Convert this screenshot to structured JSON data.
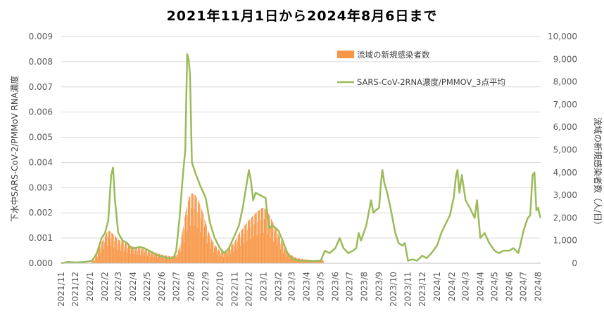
{
  "chart_data": {
    "type": "bar+line",
    "title": "2021年11月1日から2024年8月6日まで",
    "ylabel_left": "下水中SARS-CoV-2/PMMoV RNA濃度",
    "ylabel_right": "流域の新規感染者数（人/日）",
    "left_axis": {
      "min": 0,
      "max": 0.009,
      "ticks": [
        "0.000",
        "0.001",
        "0.002",
        "0.003",
        "0.004",
        "0.005",
        "0.006",
        "0.007",
        "0.008",
        "0.009"
      ]
    },
    "right_axis": {
      "min": 0,
      "max": 10000,
      "ticks": [
        "0",
        "1,000",
        "2,000",
        "3,000",
        "4,000",
        "5,000",
        "6,000",
        "7,000",
        "8,000",
        "9,000",
        "10,000"
      ]
    },
    "x_axis": {
      "start": "2021-11-01",
      "end": "2024-08-06",
      "ticks": [
        "2021/11",
        "2021/12",
        "2022/1",
        "2022/2",
        "2022/3",
        "2022/4",
        "2022/5",
        "2022/6",
        "2022/7",
        "2022/8",
        "2022/9",
        "2022/10",
        "2022/11",
        "2022/12",
        "2023/1",
        "2023/2",
        "2023/3",
        "2023/4",
        "2023/5",
        "2023/6",
        "2023/7",
        "2023/8",
        "2023/9",
        "2023/10",
        "2023/11",
        "2023/12",
        "2024/1",
        "2024/2",
        "2024/3",
        "2024/4",
        "2024/5",
        "2024/6",
        "2024/7",
        "2024/8"
      ]
    },
    "grid": "horizontal",
    "legend_position": "top-right",
    "series": [
      {
        "name": "流域の新規感染者数",
        "type": "bar",
        "axis": "right",
        "color": "#f79646",
        "x_end": "2023-05-07",
        "points": [
          [
            "2021-11-01",
            0
          ],
          [
            "2021-12-15",
            0
          ],
          [
            "2022-01-01",
            20
          ],
          [
            "2022-01-10",
            150
          ],
          [
            "2022-01-20",
            700
          ],
          [
            "2022-02-01",
            1200
          ],
          [
            "2022-02-07",
            1450
          ],
          [
            "2022-02-12",
            1400
          ],
          [
            "2022-02-20",
            1250
          ],
          [
            "2022-03-01",
            1050
          ],
          [
            "2022-03-15",
            900
          ],
          [
            "2022-03-25",
            800
          ],
          [
            "2022-04-05",
            700
          ],
          [
            "2022-04-20",
            650
          ],
          [
            "2022-05-05",
            550
          ],
          [
            "2022-05-20",
            450
          ],
          [
            "2022-06-01",
            380
          ],
          [
            "2022-06-15",
            320
          ],
          [
            "2022-06-25",
            300
          ],
          [
            "2022-07-01",
            350
          ],
          [
            "2022-07-08",
            700
          ],
          [
            "2022-07-15",
            1500
          ],
          [
            "2022-07-22",
            2400
          ],
          [
            "2022-07-28",
            2900
          ],
          [
            "2022-08-03",
            3100
          ],
          [
            "2022-08-10",
            3000
          ],
          [
            "2022-08-18",
            2700
          ],
          [
            "2022-08-25",
            2300
          ],
          [
            "2022-09-01",
            1800
          ],
          [
            "2022-09-10",
            1200
          ],
          [
            "2022-09-20",
            800
          ],
          [
            "2022-10-01",
            550
          ],
          [
            "2022-10-10",
            500
          ],
          [
            "2022-10-20",
            650
          ],
          [
            "2022-11-01",
            950
          ],
          [
            "2022-11-10",
            1300
          ],
          [
            "2022-11-20",
            1600
          ],
          [
            "2022-12-01",
            1900
          ],
          [
            "2022-12-10",
            2100
          ],
          [
            "2022-12-20",
            2300
          ],
          [
            "2022-12-30",
            2450
          ],
          [
            "2023-01-05",
            2400
          ],
          [
            "2023-01-15",
            2050
          ],
          [
            "2023-01-25",
            1600
          ],
          [
            "2023-02-05",
            1100
          ],
          [
            "2023-02-15",
            650
          ],
          [
            "2023-02-25",
            400
          ],
          [
            "2023-03-10",
            250
          ],
          [
            "2023-03-25",
            180
          ],
          [
            "2023-04-10",
            150
          ],
          [
            "2023-04-25",
            150
          ],
          [
            "2023-05-07",
            150
          ]
        ]
      },
      {
        "name": "SARS-CoV-2RNA濃度/PMMOV_3点平均",
        "type": "line",
        "axis": "left",
        "color": "#9bbb59",
        "points": [
          [
            "2021-11-01",
            0.0
          ],
          [
            "2021-11-15",
            5e-05
          ],
          [
            "2021-12-01",
            3e-05
          ],
          [
            "2021-12-20",
            5e-05
          ],
          [
            "2022-01-05",
            0.0001
          ],
          [
            "2022-01-15",
            0.0004
          ],
          [
            "2022-01-25",
            0.001
          ],
          [
            "2022-02-01",
            0.0012
          ],
          [
            "2022-02-08",
            0.0017
          ],
          [
            "2022-02-14",
            0.0035
          ],
          [
            "2022-02-18",
            0.0038
          ],
          [
            "2022-02-22",
            0.0025
          ],
          [
            "2022-03-01",
            0.0012
          ],
          [
            "2022-03-10",
            0.0009
          ],
          [
            "2022-03-20",
            0.0008
          ],
          [
            "2022-03-28",
            0.0006
          ],
          [
            "2022-04-05",
            0.0006
          ],
          [
            "2022-04-15",
            0.00065
          ],
          [
            "2022-04-25",
            0.0006
          ],
          [
            "2022-05-05",
            0.0005
          ],
          [
            "2022-05-15",
            0.0004
          ],
          [
            "2022-05-25",
            0.0003
          ],
          [
            "2022-06-05",
            0.00025
          ],
          [
            "2022-06-15",
            0.0002
          ],
          [
            "2022-06-25",
            0.0002
          ],
          [
            "2022-07-01",
            0.0005
          ],
          [
            "2022-07-08",
            0.0018
          ],
          [
            "2022-07-15",
            0.0035
          ],
          [
            "2022-07-20",
            0.0045
          ],
          [
            "2022-07-24",
            0.0083
          ],
          [
            "2022-07-27",
            0.0081
          ],
          [
            "2022-07-30",
            0.0075
          ],
          [
            "2022-08-03",
            0.004
          ],
          [
            "2022-08-10",
            0.0036
          ],
          [
            "2022-08-20",
            0.0031
          ],
          [
            "2022-09-01",
            0.0026
          ],
          [
            "2022-09-10",
            0.0016
          ],
          [
            "2022-09-20",
            0.001
          ],
          [
            "2022-10-01",
            0.0006
          ],
          [
            "2022-10-10",
            0.0004
          ],
          [
            "2022-10-20",
            0.0006
          ],
          [
            "2022-11-01",
            0.0011
          ],
          [
            "2022-11-10",
            0.0015
          ],
          [
            "2022-11-18",
            0.0022
          ],
          [
            "2022-11-25",
            0.003
          ],
          [
            "2022-12-01",
            0.0037
          ],
          [
            "2022-12-05",
            0.0033
          ],
          [
            "2022-12-10",
            0.0025
          ],
          [
            "2022-12-15",
            0.0028
          ],
          [
            "2022-12-25",
            0.0027
          ],
          [
            "2023-01-05",
            0.0026
          ],
          [
            "2023-01-12",
            0.0014
          ],
          [
            "2023-01-20",
            0.0015
          ],
          [
            "2023-02-01",
            0.0013
          ],
          [
            "2023-02-10",
            0.0009
          ],
          [
            "2023-02-20",
            0.0004
          ],
          [
            "2023-03-01",
            0.0002
          ],
          [
            "2023-03-15",
            0.0001
          ],
          [
            "2023-04-01",
            0.0001
          ],
          [
            "2023-04-15",
            8e-05
          ],
          [
            "2023-05-01",
            0.0001
          ],
          [
            "2023-05-10",
            0.0005
          ],
          [
            "2023-05-20",
            0.0004
          ],
          [
            "2023-06-01",
            0.0006
          ],
          [
            "2023-06-10",
            0.001
          ],
          [
            "2023-06-18",
            0.0006
          ],
          [
            "2023-06-28",
            0.0004
          ],
          [
            "2023-07-08",
            0.0005
          ],
          [
            "2023-07-15",
            0.0006
          ],
          [
            "2023-07-20",
            0.0012
          ],
          [
            "2023-07-25",
            0.0009
          ],
          [
            "2023-08-05",
            0.0015
          ],
          [
            "2023-08-15",
            0.0025
          ],
          [
            "2023-08-20",
            0.002
          ],
          [
            "2023-08-25",
            0.0021
          ],
          [
            "2023-09-01",
            0.0022
          ],
          [
            "2023-09-05",
            0.0032
          ],
          [
            "2023-09-08",
            0.0037
          ],
          [
            "2023-09-12",
            0.0032
          ],
          [
            "2023-09-18",
            0.0028
          ],
          [
            "2023-09-25",
            0.0022
          ],
          [
            "2023-10-05",
            0.0012
          ],
          [
            "2023-10-12",
            0.0008
          ],
          [
            "2023-10-20",
            0.0007
          ],
          [
            "2023-10-25",
            0.0008
          ],
          [
            "2023-11-01",
            0.0001
          ],
          [
            "2023-11-10",
            0.00015
          ],
          [
            "2023-11-20",
            0.0001
          ],
          [
            "2023-12-01",
            0.0003
          ],
          [
            "2023-12-10",
            0.0002
          ],
          [
            "2023-12-20",
            0.0004
          ],
          [
            "2024-01-01",
            0.0007
          ],
          [
            "2024-01-10",
            0.0012
          ],
          [
            "2024-01-20",
            0.0016
          ],
          [
            "2024-01-28",
            0.0019
          ],
          [
            "2024-02-05",
            0.0026
          ],
          [
            "2024-02-10",
            0.0035
          ],
          [
            "2024-02-13",
            0.0037
          ],
          [
            "2024-02-17",
            0.0028
          ],
          [
            "2024-02-22",
            0.0035
          ],
          [
            "2024-03-01",
            0.0025
          ],
          [
            "2024-03-10",
            0.0022
          ],
          [
            "2024-03-20",
            0.0018
          ],
          [
            "2024-03-25",
            0.0025
          ],
          [
            "2024-04-01",
            0.001
          ],
          [
            "2024-04-10",
            0.0012
          ],
          [
            "2024-04-20",
            0.0008
          ],
          [
            "2024-05-01",
            0.0005
          ],
          [
            "2024-05-10",
            0.0004
          ],
          [
            "2024-05-20",
            0.0005
          ],
          [
            "2024-06-01",
            0.0005
          ],
          [
            "2024-06-10",
            0.0006
          ],
          [
            "2024-06-20",
            0.0004
          ],
          [
            "2024-06-25",
            0.0008
          ],
          [
            "2024-07-01",
            0.0013
          ],
          [
            "2024-07-10",
            0.0018
          ],
          [
            "2024-07-15",
            0.0019
          ],
          [
            "2024-07-20",
            0.0035
          ],
          [
            "2024-07-24",
            0.0036
          ],
          [
            "2024-07-28",
            0.0021
          ],
          [
            "2024-08-01",
            0.0022
          ],
          [
            "2024-08-04",
            0.0019
          ],
          [
            "2024-08-06",
            0.0018
          ]
        ]
      }
    ]
  }
}
